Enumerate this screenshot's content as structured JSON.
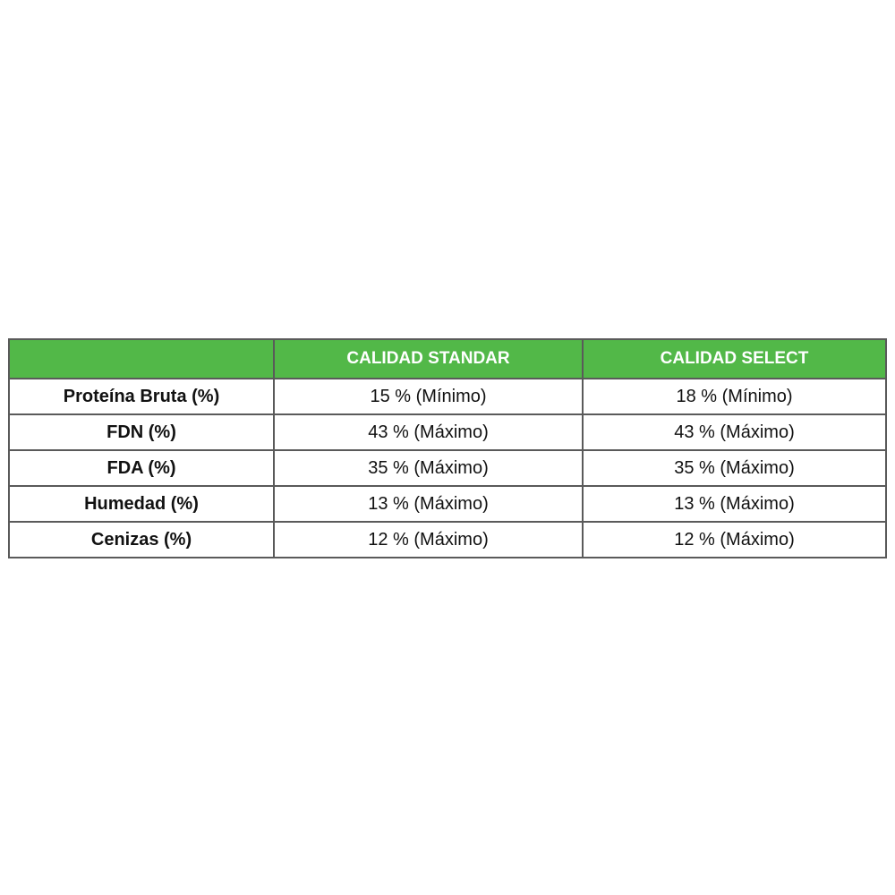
{
  "table": {
    "headers": [
      "",
      "CALIDAD STANDAR",
      "CALIDAD SELECT"
    ],
    "rows": [
      [
        "Proteína Bruta (%)",
        "15 % (Mínimo)",
        "18 % (Mínimo)"
      ],
      [
        "FDN (%)",
        "43 % (Máximo)",
        "43 % (Máximo)"
      ],
      [
        "FDA (%)",
        "35 % (Máximo)",
        "35 % (Máximo)"
      ],
      [
        "Humedad (%)",
        "13 % (Máximo)",
        "13 % (Máximo)"
      ],
      [
        "Cenizas (%)",
        "12 % (Máximo)",
        "12 % (Máximo)"
      ]
    ]
  },
  "colors": {
    "header_bg": "#52b848",
    "header_text": "#ffffff",
    "border": "#5a5a5a"
  }
}
